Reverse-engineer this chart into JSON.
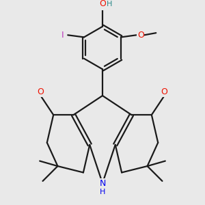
{
  "background_color": "#e9e9e9",
  "bond_color": "#1a1a1a",
  "atom_colors": {
    "O": "#ee1100",
    "N": "#0000ee",
    "H_on_O": "#2a8888",
    "I": "#bb33bb",
    "C": "#1a1a1a"
  },
  "figsize": [
    3.0,
    3.0
  ],
  "dpi": 100
}
